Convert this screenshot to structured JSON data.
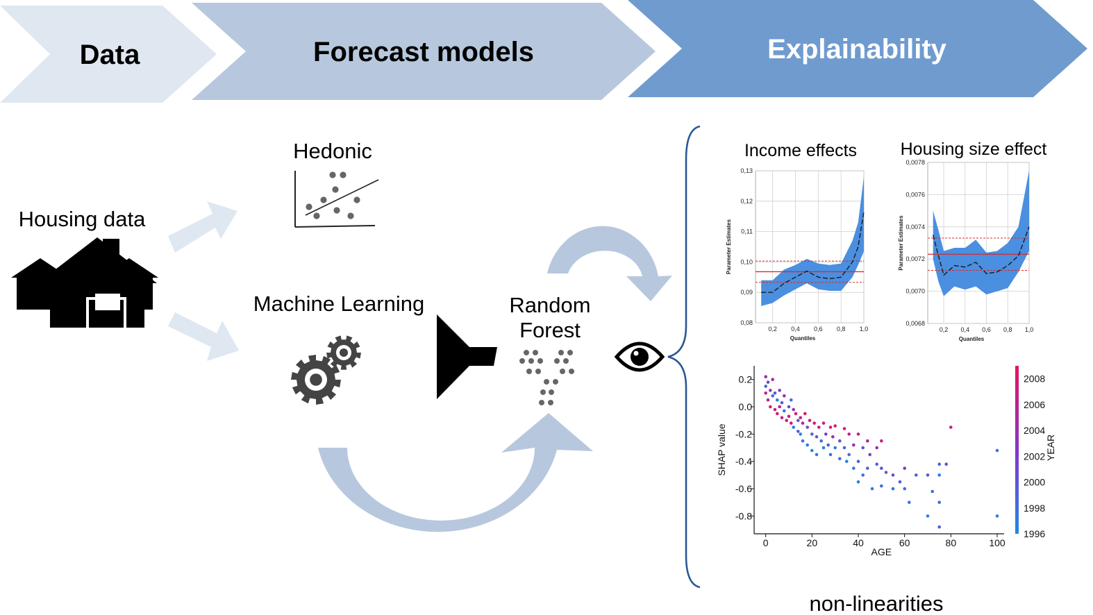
{
  "stages": [
    {
      "label": "Data",
      "color": "#dfe7f1",
      "text_color": "#000000"
    },
    {
      "label": "Forecast models",
      "color": "#b7c8de",
      "text_color": "#000000"
    },
    {
      "label": "Explainability",
      "color": "#6f9bcf",
      "text_color": "#ffffff"
    }
  ],
  "left": {
    "housing_label": "Housing data",
    "hedonic_label": "Hedonic",
    "ml_label": "Machine Learning",
    "rf_label_1": "Random",
    "rf_label_2": "Forest"
  },
  "icons": [
    "house-icon",
    "scatter-plot-icon",
    "gears-icon",
    "funnel-icon",
    "tree-dots-icon",
    "eye-icon",
    "curly-brace-icon"
  ],
  "colors": {
    "arrow": "#b7c8de",
    "arrow_light": "#dfe7f1",
    "band": "#4a8fe0",
    "brace": "#2c5794",
    "red": "#d92a2a"
  },
  "footer_label": "non-linearities",
  "chart_data": [
    {
      "type": "line",
      "title": "Income effects",
      "xlabel": "Quantiles",
      "ylabel": "Parameter Estimates",
      "xlim": [
        0.05,
        1.0
      ],
      "ylim": [
        0.08,
        0.13
      ],
      "xticks": [
        0.2,
        0.4,
        0.6,
        0.8,
        1.0
      ],
      "xtick_labels": [
        "0,2",
        "0,4",
        "0,6",
        "0,8",
        "1,0"
      ],
      "yticks": [
        0.08,
        0.09,
        0.1,
        0.11,
        0.12,
        0.13
      ],
      "ytick_labels": [
        "0,08",
        "0,09",
        "0,10",
        "0,11",
        "0,12",
        "0,13"
      ],
      "grid": true,
      "x": [
        0.1,
        0.2,
        0.3,
        0.4,
        0.5,
        0.6,
        0.7,
        0.8,
        0.9,
        0.95,
        1.0
      ],
      "estimate": [
        0.09,
        0.09,
        0.093,
        0.095,
        0.097,
        0.095,
        0.0945,
        0.095,
        0.1,
        0.105,
        0.1165
      ],
      "lower": [
        0.0855,
        0.0865,
        0.089,
        0.091,
        0.093,
        0.091,
        0.0905,
        0.0905,
        0.095,
        0.099,
        0.1035
      ],
      "upper": [
        0.094,
        0.094,
        0.0975,
        0.099,
        0.101,
        0.0995,
        0.099,
        0.0995,
        0.107,
        0.113,
        0.128
      ],
      "ols": 0.0968,
      "ols_ci": [
        0.0933,
        0.1003
      ]
    },
    {
      "type": "line",
      "title": "Housing size effect",
      "xlabel": "Quantiles",
      "ylabel": "Parameter Estimates",
      "xlim": [
        0.05,
        1.0
      ],
      "ylim": [
        0.0068,
        0.0078
      ],
      "xticks": [
        0.2,
        0.4,
        0.6,
        0.8,
        1.0
      ],
      "xtick_labels": [
        "0,2",
        "0,4",
        "0,6",
        "0,8",
        "1,0"
      ],
      "yticks": [
        0.0068,
        0.007,
        0.0072,
        0.0074,
        0.0076,
        0.0078
      ],
      "ytick_labels": [
        "0,0068",
        "0,0070",
        "0,0072",
        "0,0074",
        "0,0076",
        "0,0078"
      ],
      "grid": true,
      "x": [
        0.1,
        0.15,
        0.2,
        0.3,
        0.4,
        0.5,
        0.6,
        0.7,
        0.8,
        0.9,
        1.0
      ],
      "estimate": [
        0.00735,
        0.00722,
        0.0071,
        0.00716,
        0.00715,
        0.00718,
        0.00711,
        0.00712,
        0.00716,
        0.00722,
        0.0074
      ],
      "lower": [
        0.0072,
        0.00706,
        0.00697,
        0.00703,
        0.00701,
        0.00703,
        0.00698,
        0.007,
        0.00702,
        0.00712,
        0.00725
      ],
      "upper": [
        0.0075,
        0.00738,
        0.00725,
        0.00727,
        0.00727,
        0.00732,
        0.00724,
        0.00725,
        0.0073,
        0.0074,
        0.00775
      ],
      "ols": 0.00723,
      "ols_ci": [
        0.00713,
        0.00733
      ]
    },
    {
      "type": "scatter",
      "xlabel": "AGE",
      "ylabel": "SHAP value",
      "xlim": [
        -5,
        103
      ],
      "ylim": [
        -0.93,
        0.3
      ],
      "xticks": [
        0,
        20,
        40,
        60,
        80,
        100
      ],
      "yticks": [
        0.2,
        0.0,
        -0.2,
        -0.4,
        -0.6,
        -0.8
      ],
      "ytick_labels": [
        "0.2",
        "0.0",
        "-0.2",
        "-0.4",
        "-0.6",
        "-0.8"
      ],
      "colorbar": {
        "label": "YEAR",
        "min": 1996,
        "max": 2009,
        "ticks": [
          1996,
          1998,
          2000,
          2002,
          2004,
          2006,
          2008
        ],
        "low_color": "#1e88e5",
        "high_color": "#e5155d"
      },
      "points": [
        [
          0,
          0.22,
          2004
        ],
        [
          0,
          0.15,
          1999
        ],
        [
          0,
          0.1,
          2007
        ],
        [
          1,
          0.05,
          2006
        ],
        [
          1,
          0.18,
          2001
        ],
        [
          2,
          0.12,
          2003
        ],
        [
          2,
          0.0,
          2008
        ],
        [
          3,
          0.08,
          1998
        ],
        [
          3,
          0.2,
          2005
        ],
        [
          4,
          -0.02,
          2007
        ],
        [
          4,
          0.1,
          2000
        ],
        [
          5,
          0.05,
          1997
        ],
        [
          5,
          -0.05,
          2008
        ],
        [
          6,
          0.12,
          2002
        ],
        [
          6,
          0.0,
          2006
        ],
        [
          7,
          0.03,
          1999
        ],
        [
          7,
          -0.08,
          2007
        ],
        [
          8,
          0.08,
          2004
        ],
        [
          8,
          -0.03,
          1997
        ],
        [
          9,
          -0.1,
          2008
        ],
        [
          10,
          0.0,
          2001
        ],
        [
          10,
          -0.07,
          2006
        ],
        [
          11,
          0.05,
          1998
        ],
        [
          11,
          -0.12,
          2007
        ],
        [
          12,
          -0.02,
          2003
        ],
        [
          12,
          -0.15,
          1997
        ],
        [
          13,
          -0.05,
          2008
        ],
        [
          14,
          -0.1,
          2000
        ],
        [
          14,
          -0.18,
          1999
        ],
        [
          15,
          -0.08,
          2006
        ],
        [
          15,
          -0.2,
          1997
        ],
        [
          16,
          -0.12,
          2005
        ],
        [
          16,
          -0.25,
          1998
        ],
        [
          17,
          -0.05,
          2008
        ],
        [
          18,
          -0.15,
          2001
        ],
        [
          18,
          -0.28,
          1997
        ],
        [
          19,
          -0.1,
          2007
        ],
        [
          20,
          -0.2,
          1999
        ],
        [
          20,
          -0.32,
          1996
        ],
        [
          21,
          -0.12,
          2008
        ],
        [
          22,
          -0.22,
          2000
        ],
        [
          22,
          -0.35,
          1997
        ],
        [
          23,
          -0.15,
          2006
        ],
        [
          24,
          -0.25,
          1998
        ],
        [
          25,
          -0.12,
          2007
        ],
        [
          25,
          -0.3,
          1997
        ],
        [
          26,
          -0.2,
          2002
        ],
        [
          27,
          -0.28,
          1999
        ],
        [
          28,
          -0.15,
          2008
        ],
        [
          28,
          -0.35,
          1998
        ],
        [
          29,
          -0.22,
          2004
        ],
        [
          30,
          -0.3,
          1997
        ],
        [
          30,
          -0.14,
          2007
        ],
        [
          32,
          -0.25,
          2000
        ],
        [
          32,
          -0.38,
          1998
        ],
        [
          34,
          -0.16,
          2008
        ],
        [
          34,
          -0.3,
          1999
        ],
        [
          35,
          -0.4,
          1997
        ],
        [
          36,
          -0.2,
          2006
        ],
        [
          36,
          -0.35,
          1998
        ],
        [
          38,
          -0.28,
          2003
        ],
        [
          38,
          -0.45,
          1997
        ],
        [
          40,
          -0.2,
          2007
        ],
        [
          40,
          -0.4,
          1999
        ],
        [
          40,
          -0.55,
          1997
        ],
        [
          42,
          -0.3,
          2000
        ],
        [
          42,
          -0.5,
          1998
        ],
        [
          44,
          -0.25,
          2006
        ],
        [
          44,
          -0.45,
          1999
        ],
        [
          45,
          -0.35,
          2002
        ],
        [
          46,
          -0.6,
          1997
        ],
        [
          48,
          -0.42,
          1999
        ],
        [
          48,
          -0.3,
          2004
        ],
        [
          50,
          -0.25,
          2007
        ],
        [
          50,
          -0.45,
          2000
        ],
        [
          50,
          -0.58,
          1998
        ],
        [
          52,
          -0.48,
          1999
        ],
        [
          55,
          -0.5,
          2001
        ],
        [
          55,
          -0.6,
          1998
        ],
        [
          58,
          -0.55,
          1999
        ],
        [
          60,
          -0.6,
          1998
        ],
        [
          60,
          -0.45,
          2002
        ],
        [
          62,
          -0.7,
          1997
        ],
        [
          65,
          -0.5,
          1999
        ],
        [
          70,
          -0.5,
          2000
        ],
        [
          70,
          -0.8,
          1997
        ],
        [
          72,
          -0.62,
          1998
        ],
        [
          75,
          -0.42,
          1999
        ],
        [
          75,
          -0.5,
          1997
        ],
        [
          75,
          -0.7,
          1998
        ],
        [
          75,
          -0.88,
          1999
        ],
        [
          78,
          -0.42,
          2000
        ],
        [
          80,
          -0.15,
          2007
        ],
        [
          100,
          -0.32,
          1998
        ],
        [
          100,
          -0.8,
          1997
        ]
      ]
    }
  ]
}
